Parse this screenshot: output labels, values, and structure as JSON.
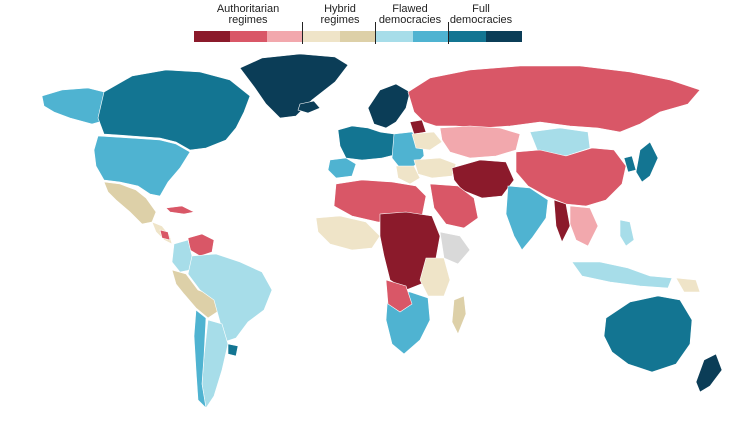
{
  "legend": {
    "categories": [
      {
        "line1": "Authoritarian",
        "line2": "regimes",
        "colors": [
          "#8b1a2b",
          "#d95767",
          "#f2a8ad"
        ]
      },
      {
        "line1": "Hybrid",
        "line2": "regimes",
        "colors": [
          "#efe4c8",
          "#ddd0a8"
        ]
      },
      {
        "line1": "Flawed",
        "line2": "democracies",
        "colors": [
          "#a7dde9",
          "#4fb3d1"
        ]
      },
      {
        "line1": "Full",
        "line2": "democracies",
        "colors": [
          "#137592",
          "#0b3d57"
        ]
      }
    ]
  },
  "map": {
    "ocean_color": "#ffffff",
    "border_color": "#ffffff",
    "regime_colors": {
      "authoritarian_dark": "#8b1a2b",
      "authoritarian_mid": "#d95767",
      "authoritarian_light": "#f2a8ad",
      "hybrid_light": "#efe4c8",
      "hybrid_dark": "#ddd0a8",
      "flawed_light": "#a7dde9",
      "flawed_dark": "#4fb3d1",
      "full_light": "#137592",
      "full_dark": "#0b3d57",
      "no_data": "#d9d9d9"
    }
  }
}
